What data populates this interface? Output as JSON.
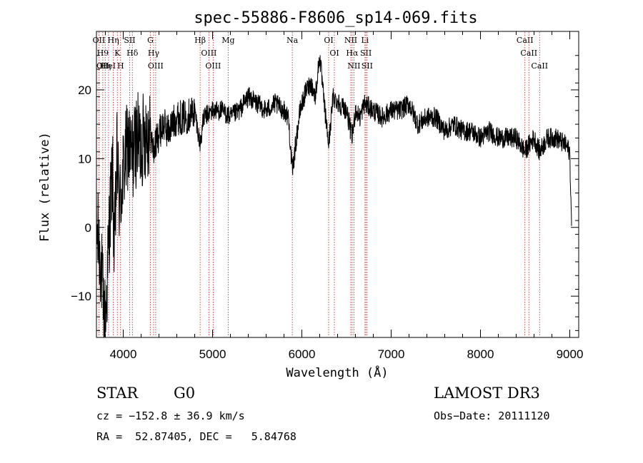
{
  "chart_data": {
    "type": "line",
    "title": "spec-55886-F8606_sp14-069.fits",
    "xlabel": "Wavelength (Å)",
    "ylabel": "Flux (relative)",
    "xlim": [
      3700,
      9100
    ],
    "ylim": [
      -16,
      28.5
    ],
    "xticks": [
      4000,
      5000,
      6000,
      7000,
      8000,
      9000
    ],
    "yticks": [
      -10,
      0,
      10,
      20
    ],
    "series": [
      {
        "name": "flux",
        "x": [
          3700,
          3750,
          3780,
          3800,
          3820,
          3850,
          3880,
          3900,
          3930,
          3960,
          4000,
          4050,
          4100,
          4150,
          4200,
          4250,
          4300,
          4340,
          4380,
          4450,
          4500,
          4600,
          4700,
          4800,
          4861,
          4900,
          5000,
          5100,
          5200,
          5300,
          5400,
          5500,
          5600,
          5700,
          5800,
          5850,
          5893,
          5930,
          5980,
          6050,
          6100,
          6150,
          6200,
          6250,
          6300,
          6350,
          6420,
          6500,
          6563,
          6600,
          6650,
          6700,
          6800,
          6900,
          7000,
          7100,
          7200,
          7300,
          7400,
          7500,
          7600,
          7700,
          7800,
          7900,
          8000,
          8100,
          8200,
          8300,
          8400,
          8498,
          8542,
          8600,
          8662,
          8750,
          8850,
          8950,
          9000,
          9020
        ],
        "y": [
          0,
          -5,
          -12,
          -14,
          -8,
          2,
          8,
          -4,
          10,
          3,
          8,
          12,
          10,
          13,
          12,
          14,
          14,
          11,
          13,
          15,
          14,
          16,
          16,
          17,
          12,
          16,
          17,
          17,
          16,
          17,
          19,
          18,
          17,
          18,
          17,
          16,
          8,
          12,
          17,
          20,
          21,
          19,
          25,
          18,
          12,
          19,
          18,
          17,
          13,
          17,
          16,
          18,
          17,
          16,
          17,
          17,
          18,
          15,
          16,
          16,
          14,
          15,
          14,
          14,
          13,
          14,
          13,
          13,
          13,
          11,
          12,
          13,
          11,
          13,
          13,
          12,
          11,
          0
        ]
      }
    ],
    "lines": [
      {
        "wl": 3727,
        "labels": [
          "OII"
        ]
      },
      {
        "wl": 3771,
        "labels": [
          "H9",
          "OII"
        ]
      },
      {
        "wl": 3798,
        "labels": [
          "Hη"
        ]
      },
      {
        "wl": 3835,
        "labels": [
          "HeI"
        ]
      },
      {
        "wl": 3889,
        "labels": [
          "Hη"
        ]
      },
      {
        "wl": 3934,
        "labels": [
          "K"
        ]
      },
      {
        "wl": 3970,
        "labels": [
          "H"
        ]
      },
      {
        "wl": 4072,
        "labels": [
          "SII"
        ]
      },
      {
        "wl": 4102,
        "labels": [
          "Hδ"
        ]
      },
      {
        "wl": 4304,
        "labels": [
          "G"
        ]
      },
      {
        "wl": 4340,
        "labels": [
          "Hγ"
        ]
      },
      {
        "wl": 4363,
        "labels": [
          "OIII"
        ]
      },
      {
        "wl": 4861,
        "labels": [
          "Hβ"
        ]
      },
      {
        "wl": 4959,
        "labels": [
          "OIII"
        ]
      },
      {
        "wl": 5007,
        "labels": [
          "OIII"
        ]
      },
      {
        "wl": 5175,
        "labels": [
          "Mg"
        ]
      },
      {
        "wl": 5893,
        "labels": [
          "Na"
        ]
      },
      {
        "wl": 6300,
        "labels": [
          "OI"
        ]
      },
      {
        "wl": 6364,
        "labels": [
          "OI"
        ]
      },
      {
        "wl": 6548,
        "labels": [
          "NII"
        ]
      },
      {
        "wl": 6563,
        "labels": [
          "Hα"
        ]
      },
      {
        "wl": 6583,
        "labels": [
          "NII"
        ]
      },
      {
        "wl": 6707,
        "labels": [
          "Li"
        ]
      },
      {
        "wl": 6717,
        "labels": [
          "SII"
        ]
      },
      {
        "wl": 6731,
        "labels": [
          "SII"
        ]
      },
      {
        "wl": 8498,
        "labels": [
          "CaII"
        ]
      },
      {
        "wl": 8542,
        "labels": [
          "CaII"
        ]
      },
      {
        "wl": 8662,
        "labels": [
          "CaII"
        ]
      }
    ]
  },
  "info": {
    "object_class": "STAR",
    "subclass": "G0",
    "survey": "LAMOST DR3",
    "cz": "cz = −152.8 ± 36.9 km/s",
    "obs_date": "Obs−Date: 20111120",
    "coords": "RA =  52.87405, DEC =   5.84768"
  },
  "colors": {
    "spectrum": "#000000",
    "line_markers": "#b22222",
    "axes": "#000000"
  }
}
